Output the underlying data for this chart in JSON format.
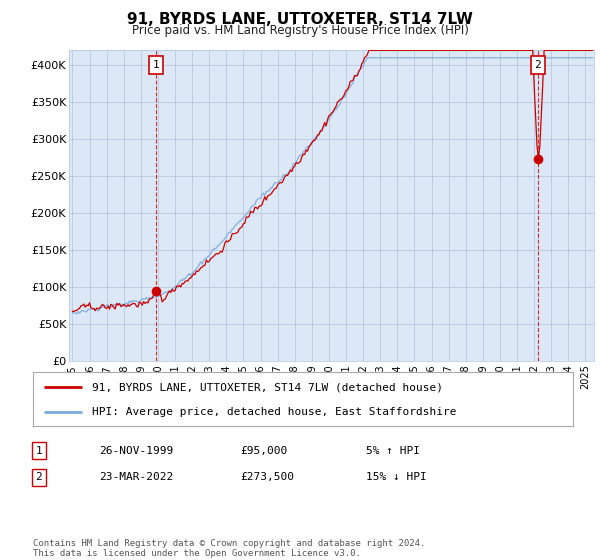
{
  "title": "91, BYRDS LANE, UTTOXETER, ST14 7LW",
  "subtitle": "Price paid vs. HM Land Registry's House Price Index (HPI)",
  "ylim": [
    0,
    420000
  ],
  "yticks": [
    0,
    50000,
    100000,
    150000,
    200000,
    250000,
    300000,
    350000,
    400000
  ],
  "ytick_labels": [
    "£0",
    "£50K",
    "£100K",
    "£150K",
    "£200K",
    "£250K",
    "£300K",
    "£350K",
    "£400K"
  ],
  "xlim_start": 1994.8,
  "xlim_end": 2025.5,
  "hpi_color": "#7aabdc",
  "price_color": "#cc0000",
  "sale1_year_f": 1999.9,
  "sale1_price": 95000,
  "sale2_year_f": 2022.22,
  "sale2_price": 273500,
  "legend_label1": "91, BYRDS LANE, UTTOXETER, ST14 7LW (detached house)",
  "legend_label2": "HPI: Average price, detached house, East Staffordshire",
  "table_row1_date": "26-NOV-1999",
  "table_row1_price": "£95,000",
  "table_row1_hpi": "5% ↑ HPI",
  "table_row2_date": "23-MAR-2022",
  "table_row2_price": "£273,500",
  "table_row2_hpi": "15% ↓ HPI",
  "footer": "Contains HM Land Registry data © Crown copyright and database right 2024.\nThis data is licensed under the Open Government Licence v3.0.",
  "plot_bg_color": "#dce8f5",
  "grid_color": "#b0c4de"
}
